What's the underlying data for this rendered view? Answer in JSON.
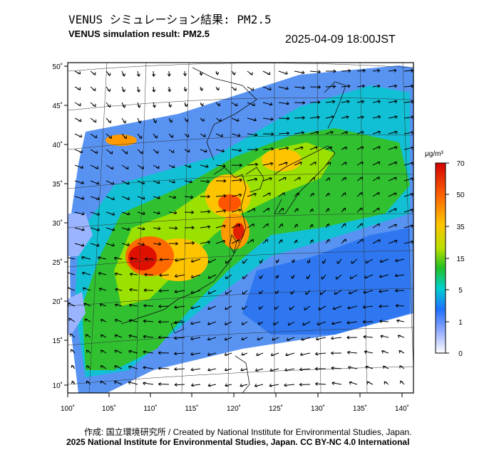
{
  "title_jp": "VENUS シミュレーション結果: PM2.5",
  "title_en": "VENUS simulation result: PM2.5",
  "datetime": "2025-04-09 18:00JST",
  "map": {
    "lat_labels": [
      "50˚",
      "45˚",
      "40˚",
      "35˚",
      "30˚",
      "25˚",
      "20˚",
      "15˚",
      "10˚"
    ],
    "lon_labels": [
      "100˚",
      "105˚",
      "110˚",
      "115˚",
      "120˚",
      "125˚",
      "130˚",
      "135˚",
      "140˚"
    ],
    "lon_range": [
      100,
      141
    ],
    "lat_range": [
      9,
      51
    ]
  },
  "colorbar": {
    "unit": "μg/m³",
    "ticks": [
      "70",
      "50",
      "35",
      "15",
      "5",
      "1",
      "0"
    ],
    "colors": [
      "#d40000",
      "#ff6a00",
      "#ffc400",
      "#b8e000",
      "#22c022",
      "#00d0d0",
      "#2070ff",
      "#8fa8ff",
      "#ffffff"
    ]
  },
  "credit_line1": "作成: 国立環境研究所 / Created by National Institute for Environmental Studies, Japan.",
  "credit_line2": "2025 National Institute for Environmental Studies, Japan. CC BY-NC 4.0 International"
}
